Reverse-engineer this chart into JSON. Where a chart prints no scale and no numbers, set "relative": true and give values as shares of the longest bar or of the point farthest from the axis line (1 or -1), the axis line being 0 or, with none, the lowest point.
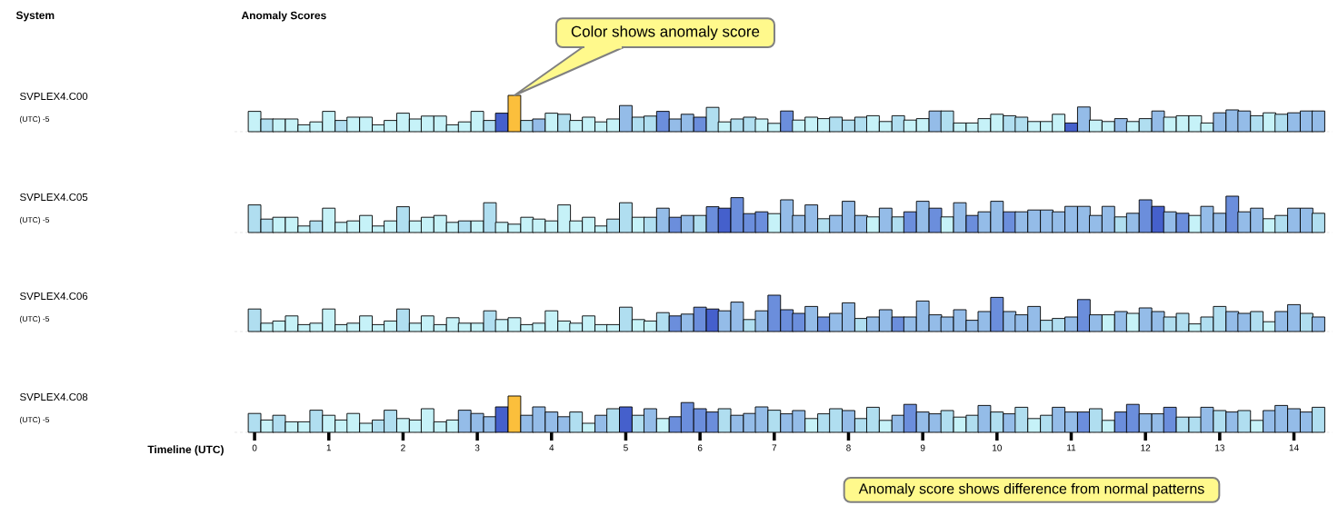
{
  "chart_data": [
    {
      "type": "bar",
      "relative": true,
      "ylabel": "SVPLEX4.C00",
      "tick_labels": false,
      "annotations": [
        "(UTC) -5",
        "System",
        "Anomaly Scores",
        {
          "text": "Color shows anomaly score",
          "x": 3.5,
          "y": 1
        }
      ],
      "xlim": [
        -0.27,
        14.52
      ],
      "xticks": [
        0,
        1,
        2,
        3,
        4,
        5,
        6,
        7,
        8,
        9,
        10,
        11,
        12,
        13,
        14
      ],
      "x": [
        0,
        0.17,
        0.33,
        0.5,
        0.67,
        0.83,
        1,
        1.17,
        1.33,
        1.5,
        1.67,
        1.83,
        2,
        2.17,
        2.33,
        2.5,
        2.67,
        2.83,
        3,
        3.17,
        3.33,
        3.5,
        3.67,
        3.83,
        4,
        4.17,
        4.33,
        4.5,
        4.67,
        4.83,
        5,
        5.17,
        5.33,
        5.5,
        5.67,
        5.83,
        6,
        6.17,
        6.33,
        6.5,
        6.67,
        6.83,
        7,
        7.17,
        7.33,
        7.5,
        7.67,
        7.83,
        8,
        8.17,
        8.33,
        8.5,
        8.67,
        8.83,
        9,
        9.17,
        9.33,
        9.5,
        9.67,
        9.83,
        10,
        10.17,
        10.33,
        10.5,
        10.67,
        10.83,
        11,
        11.17,
        11.33,
        11.5,
        11.67,
        11.83,
        12,
        12.17,
        12.33,
        12.5,
        12.67,
        12.83,
        13,
        13.17,
        13.33,
        13.5,
        13.67,
        13.83,
        14,
        14.17,
        14.33
      ],
      "values": [
        0.56,
        0.35,
        0.35,
        0.35,
        0.19,
        0.27,
        0.56,
        0.31,
        0.4,
        0.4,
        0.19,
        0.31,
        0.51,
        0.35,
        0.43,
        0.43,
        0.19,
        0.27,
        0.56,
        0.31,
        0.51,
        1,
        0.31,
        0.35,
        0.51,
        0.48,
        0.31,
        0.4,
        0.27,
        0.35,
        0.72,
        0.4,
        0.43,
        0.56,
        0.35,
        0.48,
        0.4,
        0.67,
        0.27,
        0.35,
        0.4,
        0.35,
        0.23,
        0.57,
        0.32,
        0.4,
        0.36,
        0.4,
        0.32,
        0.4,
        0.44,
        0.28,
        0.44,
        0.32,
        0.36,
        0.57,
        0.57,
        0.24,
        0.24,
        0.36,
        0.48,
        0.44,
        0.4,
        0.28,
        0.28,
        0.48,
        0.24,
        0.68,
        0.32,
        0.28,
        0.36,
        0.28,
        0.36,
        0.57,
        0.4,
        0.44,
        0.44,
        0.24,
        0.52,
        0.6,
        0.57,
        0.44,
        0.52,
        0.48,
        0.52,
        0.57,
        0.57
      ],
      "colors": [
        "#c6f2f8",
        "#b0def0",
        "#c6f2f8",
        "#c6f2f8",
        "#c6f2f8",
        "#c6f2f8",
        "#c6f2f8",
        "#b0def0",
        "#c6f2f8",
        "#c6f2f8",
        "#c6f2f8",
        "#c6f2f8",
        "#c6f2f8",
        "#c6f2f8",
        "#c6f2f8",
        "#c6f2f8",
        "#c6f2f8",
        "#c6f2f8",
        "#c6f2f8",
        "#b0def0",
        "#4560cc",
        "#fbbf3c",
        "#b0def0",
        "#94bce8",
        "#c6f2f8",
        "#b0def0",
        "#c6f2f8",
        "#c6f2f8",
        "#c6f2f8",
        "#c6f2f8",
        "#94bce8",
        "#b0def0",
        "#b0def0",
        "#6b8edc",
        "#94bce8",
        "#94bce8",
        "#6b8edc",
        "#b0def0",
        "#c6f2f8",
        "#b0def0",
        "#b0def0",
        "#c6f2f8",
        "#c6f2f8",
        "#6b8edc",
        "#c6f2f8",
        "#c6f2f8",
        "#c6f2f8",
        "#b0def0",
        "#b0def0",
        "#b0def0",
        "#c6f2f8",
        "#c6f2f8",
        "#b0def0",
        "#c6f2f8",
        "#c6f2f8",
        "#94bce8",
        "#b0def0",
        "#c6f2f8",
        "#c6f2f8",
        "#c6f2f8",
        "#c6f2f8",
        "#b0def0",
        "#b0def0",
        "#c6f2f8",
        "#c6f2f8",
        "#c6f2f8",
        "#4560cc",
        "#94bce8",
        "#c6f2f8",
        "#c6f2f8",
        "#94bce8",
        "#c6f2f8",
        "#b0def0",
        "#94bce8",
        "#c6f2f8",
        "#c6f2f8",
        "#c6f2f8",
        "#c6f2f8",
        "#94bce8",
        "#94bce8",
        "#94bce8",
        "#b0def0",
        "#c6f2f8",
        "#b0def0",
        "#94bce8",
        "#94bce8",
        "#94bce8"
      ]
    },
    {
      "type": "bar",
      "relative": true,
      "ylabel": "SVPLEX4.C05",
      "annotations": [
        "(UTC) -5"
      ],
      "tick_labels": false,
      "xlim": [
        -0.27,
        14.52
      ],
      "xticks": [
        0,
        1,
        2,
        3,
        4,
        5,
        6,
        7,
        8,
        9,
        10,
        11,
        12,
        13,
        14
      ],
      "x": [
        0,
        0.17,
        0.33,
        0.5,
        0.67,
        0.83,
        1,
        1.17,
        1.33,
        1.5,
        1.67,
        1.83,
        2,
        2.17,
        2.33,
        2.5,
        2.67,
        2.83,
        3,
        3.17,
        3.33,
        3.5,
        3.67,
        3.83,
        4,
        4.17,
        4.33,
        4.5,
        4.67,
        4.83,
        5,
        5.17,
        5.33,
        5.5,
        5.67,
        5.83,
        6,
        6.17,
        6.33,
        6.5,
        6.67,
        6.83,
        7,
        7.17,
        7.33,
        7.5,
        7.67,
        7.83,
        8,
        8.17,
        8.33,
        8.5,
        8.67,
        8.83,
        9,
        9.17,
        9.33,
        9.5,
        9.67,
        9.83,
        10,
        10.17,
        10.33,
        10.5,
        10.67,
        10.83,
        11,
        11.17,
        11.33,
        11.5,
        11.67,
        11.83,
        12,
        12.17,
        12.33,
        12.5,
        12.67,
        12.83,
        13,
        13.17,
        13.33,
        13.5,
        13.67,
        13.83,
        14,
        14.17,
        14.33
      ],
      "values": [
        0.76,
        0.37,
        0.42,
        0.42,
        0.18,
        0.32,
        0.67,
        0.28,
        0.32,
        0.47,
        0.18,
        0.32,
        0.71,
        0.32,
        0.42,
        0.47,
        0.28,
        0.32,
        0.32,
        0.82,
        0.28,
        0.23,
        0.42,
        0.37,
        0.32,
        0.76,
        0.32,
        0.42,
        0.18,
        0.37,
        0.82,
        0.42,
        0.42,
        0.67,
        0.42,
        0.47,
        0.47,
        0.71,
        0.67,
        0.96,
        0.52,
        0.57,
        0.52,
        0.9,
        0.47,
        0.76,
        0.38,
        0.47,
        0.86,
        0.47,
        0.43,
        0.67,
        0.43,
        0.57,
        0.86,
        0.67,
        0.43,
        0.82,
        0.47,
        0.57,
        0.86,
        0.57,
        0.57,
        0.62,
        0.62,
        0.57,
        0.72,
        0.72,
        0.47,
        0.72,
        0.43,
        0.53,
        0.9,
        0.72,
        0.57,
        0.53,
        0.47,
        0.72,
        0.53,
        1,
        0.57,
        0.67,
        0.38,
        0.47,
        0.67,
        0.67,
        0.53
      ],
      "colors": [
        "#b0def0",
        "#b0def0",
        "#c6f2f8",
        "#c6f2f8",
        "#c6f2f8",
        "#b0def0",
        "#c6f2f8",
        "#c6f2f8",
        "#c6f2f8",
        "#c6f2f8",
        "#c6f2f8",
        "#c6f2f8",
        "#b0def0",
        "#c6f2f8",
        "#c6f2f8",
        "#c6f2f8",
        "#c6f2f8",
        "#b0def0",
        "#c6f2f8",
        "#b0def0",
        "#c6f2f8",
        "#c6f2f8",
        "#c6f2f8",
        "#c6f2f8",
        "#c6f2f8",
        "#c6f2f8",
        "#c6f2f8",
        "#c6f2f8",
        "#c6f2f8",
        "#b0def0",
        "#b0def0",
        "#c6f2f8",
        "#b0def0",
        "#94bce8",
        "#6b8edc",
        "#94bce8",
        "#b0def0",
        "#6b8edc",
        "#4560cc",
        "#6b8edc",
        "#6b8edc",
        "#6b8edc",
        "#c6f2f8",
        "#94bce8",
        "#94bce8",
        "#94bce8",
        "#b0def0",
        "#94bce8",
        "#94bce8",
        "#94bce8",
        "#c6f2f8",
        "#94bce8",
        "#b0def0",
        "#6b8edc",
        "#94bce8",
        "#6b8edc",
        "#c6f2f8",
        "#94bce8",
        "#6b8edc",
        "#94bce8",
        "#94bce8",
        "#6b8edc",
        "#94bce8",
        "#94bce8",
        "#94bce8",
        "#94bce8",
        "#94bce8",
        "#94bce8",
        "#94bce8",
        "#94bce8",
        "#b0def0",
        "#94bce8",
        "#6b8edc",
        "#4560cc",
        "#94bce8",
        "#6b8edc",
        "#c6f2f8",
        "#94bce8",
        "#94bce8",
        "#6b8edc",
        "#94bce8",
        "#94bce8",
        "#c6f2f8",
        "#b0def0",
        "#94bce8",
        "#94bce8",
        "#b0def0"
      ]
    },
    {
      "type": "bar",
      "relative": true,
      "ylabel": "SVPLEX4.C06",
      "annotations": [
        "(UTC) -5"
      ],
      "tick_labels": false,
      "xlim": [
        -0.27,
        14.52
      ],
      "xticks": [
        0,
        1,
        2,
        3,
        4,
        5,
        6,
        7,
        8,
        9,
        10,
        11,
        12,
        13,
        14
      ],
      "x": [
        0,
        0.17,
        0.33,
        0.5,
        0.67,
        0.83,
        1,
        1.17,
        1.33,
        1.5,
        1.67,
        1.83,
        2,
        2.17,
        2.33,
        2.5,
        2.67,
        2.83,
        3,
        3.17,
        3.33,
        3.5,
        3.67,
        3.83,
        4,
        4.17,
        4.33,
        4.5,
        4.67,
        4.83,
        5,
        5.17,
        5.33,
        5.5,
        5.67,
        5.83,
        6,
        6.17,
        6.33,
        6.5,
        6.67,
        6.83,
        7,
        7.17,
        7.33,
        7.5,
        7.67,
        7.83,
        8,
        8.17,
        8.33,
        8.5,
        8.67,
        8.83,
        9,
        9.17,
        9.33,
        9.5,
        9.67,
        9.83,
        10,
        10.17,
        10.33,
        10.5,
        10.67,
        10.83,
        11,
        11.17,
        11.33,
        11.5,
        11.67,
        11.83,
        12,
        12.17,
        12.33,
        12.5,
        12.67,
        12.83,
        13,
        13.17,
        13.33,
        13.5,
        13.67,
        13.83,
        14,
        14.17,
        14.33
      ],
      "values": [
        0.62,
        0.23,
        0.29,
        0.43,
        0.19,
        0.23,
        0.62,
        0.19,
        0.23,
        0.43,
        0.19,
        0.29,
        0.62,
        0.23,
        0.43,
        0.19,
        0.38,
        0.23,
        0.23,
        0.57,
        0.33,
        0.38,
        0.19,
        0.23,
        0.57,
        0.29,
        0.23,
        0.43,
        0.19,
        0.19,
        0.67,
        0.33,
        0.29,
        0.52,
        0.43,
        0.48,
        0.67,
        0.62,
        0.57,
        0.81,
        0.33,
        0.57,
        1,
        0.6,
        0.5,
        0.69,
        0.4,
        0.5,
        0.79,
        0.36,
        0.4,
        0.6,
        0.4,
        0.4,
        0.84,
        0.46,
        0.4,
        0.6,
        0.31,
        0.55,
        0.94,
        0.55,
        0.46,
        0.69,
        0.31,
        0.36,
        0.4,
        0.88,
        0.46,
        0.46,
        0.55,
        0.5,
        0.65,
        0.55,
        0.4,
        0.5,
        0.21,
        0.4,
        0.69,
        0.55,
        0.5,
        0.55,
        0.27,
        0.55,
        0.74,
        0.5,
        0.4
      ],
      "colors": [
        "#b0def0",
        "#c6f2f8",
        "#c6f2f8",
        "#c6f2f8",
        "#c6f2f8",
        "#c6f2f8",
        "#c6f2f8",
        "#c6f2f8",
        "#c6f2f8",
        "#c6f2f8",
        "#c6f2f8",
        "#c6f2f8",
        "#b0def0",
        "#c6f2f8",
        "#c6f2f8",
        "#c6f2f8",
        "#c6f2f8",
        "#c6f2f8",
        "#c6f2f8",
        "#b0def0",
        "#c6f2f8",
        "#c6f2f8",
        "#c6f2f8",
        "#c6f2f8",
        "#c6f2f8",
        "#c6f2f8",
        "#c6f2f8",
        "#c6f2f8",
        "#c6f2f8",
        "#c6f2f8",
        "#b0def0",
        "#c6f2f8",
        "#c6f2f8",
        "#b0def0",
        "#6b8edc",
        "#94bce8",
        "#6b8edc",
        "#4560cc",
        "#94bce8",
        "#94bce8",
        "#b0def0",
        "#94bce8",
        "#6b8edc",
        "#6b8edc",
        "#6b8edc",
        "#94bce8",
        "#6b8edc",
        "#94bce8",
        "#94bce8",
        "#b0def0",
        "#94bce8",
        "#94bce8",
        "#6b8edc",
        "#94bce8",
        "#94bce8",
        "#94bce8",
        "#94bce8",
        "#94bce8",
        "#94bce8",
        "#94bce8",
        "#6b8edc",
        "#94bce8",
        "#94bce8",
        "#94bce8",
        "#b0def0",
        "#b0def0",
        "#94bce8",
        "#6b8edc",
        "#94bce8",
        "#c6f2f8",
        "#94bce8",
        "#c6f2f8",
        "#94bce8",
        "#94bce8",
        "#b0def0",
        "#b0def0",
        "#c6f2f8",
        "#b0def0",
        "#b0def0",
        "#94bce8",
        "#94bce8",
        "#b0def0",
        "#c6f2f8",
        "#94bce8",
        "#94bce8",
        "#b0def0",
        "#94bce8"
      ]
    },
    {
      "type": "bar",
      "relative": true,
      "ylabel": "SVPLEX4.C08",
      "tick_labels": "x",
      "xlabel": "Timeline (UTC)",
      "annotations": [
        "(UTC) -5",
        "Anomaly score shows difference from normal patterns"
      ],
      "xlim": [
        -0.27,
        14.52
      ],
      "xticks": [
        0,
        1,
        2,
        3,
        4,
        5,
        6,
        7,
        8,
        9,
        10,
        11,
        12,
        13,
        14
      ],
      "x": [
        0,
        0.17,
        0.33,
        0.5,
        0.67,
        0.83,
        1,
        1.17,
        1.33,
        1.5,
        1.67,
        1.83,
        2,
        2.17,
        2.33,
        2.5,
        2.67,
        2.83,
        3,
        3.17,
        3.33,
        3.5,
        3.67,
        3.83,
        4,
        4.17,
        4.33,
        4.5,
        4.67,
        4.83,
        5,
        5.17,
        5.33,
        5.5,
        5.67,
        5.83,
        6,
        6.17,
        6.33,
        6.5,
        6.67,
        6.83,
        7,
        7.17,
        7.33,
        7.5,
        7.67,
        7.83,
        8,
        8.17,
        8.33,
        8.5,
        8.67,
        8.83,
        9,
        9.17,
        9.33,
        9.5,
        9.67,
        9.83,
        10,
        10.17,
        10.33,
        10.5,
        10.67,
        10.83,
        11,
        11.17,
        11.33,
        11.5,
        11.67,
        11.83,
        12,
        12.17,
        12.33,
        12.5,
        12.67,
        12.83,
        13,
        13.17,
        13.33,
        13.5,
        13.67,
        13.83,
        14,
        14.17,
        14.33
      ],
      "values": [
        0.52,
        0.34,
        0.47,
        0.29,
        0.29,
        0.61,
        0.47,
        0.34,
        0.52,
        0.25,
        0.34,
        0.61,
        0.38,
        0.34,
        0.65,
        0.29,
        0.34,
        0.61,
        0.52,
        0.43,
        0.7,
        1,
        0.47,
        0.7,
        0.56,
        0.43,
        0.56,
        0.25,
        0.47,
        0.65,
        0.7,
        0.47,
        0.65,
        0.38,
        0.43,
        0.82,
        0.65,
        0.56,
        0.65,
        0.47,
        0.52,
        0.7,
        0.61,
        0.51,
        0.6,
        0.38,
        0.51,
        0.65,
        0.6,
        0.38,
        0.69,
        0.33,
        0.47,
        0.77,
        0.56,
        0.51,
        0.6,
        0.42,
        0.47,
        0.74,
        0.56,
        0.51,
        0.69,
        0.38,
        0.47,
        0.69,
        0.56,
        0.56,
        0.65,
        0.33,
        0.56,
        0.77,
        0.51,
        0.51,
        0.69,
        0.42,
        0.42,
        0.69,
        0.6,
        0.56,
        0.6,
        0.33,
        0.6,
        0.74,
        0.65,
        0.56,
        0.69
      ],
      "colors": [
        "#b0def0",
        "#c6f2f8",
        "#b0def0",
        "#c6f2f8",
        "#c6f2f8",
        "#b0def0",
        "#c6f2f8",
        "#c6f2f8",
        "#c6f2f8",
        "#c6f2f8",
        "#b0def0",
        "#b0def0",
        "#c6f2f8",
        "#c6f2f8",
        "#c6f2f8",
        "#c6f2f8",
        "#c6f2f8",
        "#94bce8",
        "#94bce8",
        "#94bce8",
        "#4560cc",
        "#fbbf3c",
        "#94bce8",
        "#94bce8",
        "#94bce8",
        "#94bce8",
        "#b0def0",
        "#c6f2f8",
        "#94bce8",
        "#b0def0",
        "#4560cc",
        "#b0def0",
        "#94bce8",
        "#c6f2f8",
        "#6b8edc",
        "#6b8edc",
        "#6b8edc",
        "#6b8edc",
        "#b0def0",
        "#94bce8",
        "#94bce8",
        "#94bce8",
        "#b0def0",
        "#94bce8",
        "#94bce8",
        "#c6f2f8",
        "#b0def0",
        "#b0def0",
        "#94bce8",
        "#b0def0",
        "#b0def0",
        "#c6f2f8",
        "#94bce8",
        "#6b8edc",
        "#94bce8",
        "#94bce8",
        "#b0def0",
        "#c6f2f8",
        "#b0def0",
        "#94bce8",
        "#b0def0",
        "#94bce8",
        "#b0def0",
        "#c6f2f8",
        "#b0def0",
        "#94bce8",
        "#94bce8",
        "#6b8edc",
        "#b0def0",
        "#c6f2f8",
        "#6b8edc",
        "#6b8edc",
        "#94bce8",
        "#94bce8",
        "#6b8edc",
        "#b0def0",
        "#b0def0",
        "#94bce8",
        "#b0def0",
        "#94bce8",
        "#b0def0",
        "#c6f2f8",
        "#94bce8",
        "#94bce8",
        "#94bce8",
        "#94bce8",
        "#b0def0"
      ]
    }
  ]
}
